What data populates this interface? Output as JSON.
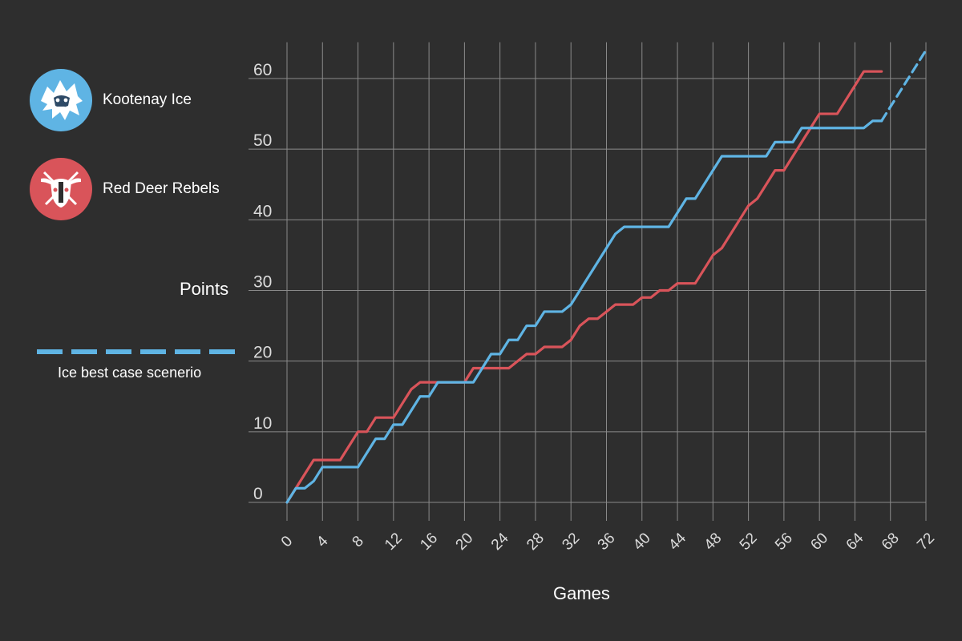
{
  "legend": {
    "kootenay": {
      "label": "Kootenay Ice",
      "icon": "yeti-logo-icon",
      "color": "#5fb4e4"
    },
    "reddeer": {
      "label": "Red Deer Rebels",
      "icon": "bull-skull-logo-icon",
      "color": "#d9545a"
    },
    "best_case": {
      "label": "Ice best case scenerio",
      "color": "#5fb4e4",
      "style": "dashed"
    }
  },
  "chart_data": {
    "type": "line",
    "xlabel": "Games",
    "ylabel": "Points",
    "xlim": [
      0,
      72
    ],
    "ylim": [
      0,
      64
    ],
    "xticks": [
      0,
      4,
      8,
      12,
      16,
      20,
      24,
      28,
      32,
      36,
      40,
      44,
      48,
      52,
      56,
      60,
      64,
      68,
      72
    ],
    "yticks": [
      0,
      10,
      20,
      30,
      40,
      50,
      60
    ],
    "grid": true,
    "colors": {
      "kootenay": "#5fb4e4",
      "reddeer": "#d9545a",
      "grid": "#8a8a8a",
      "background": "#2e2e2e"
    },
    "series": [
      {
        "name": "Kootenay Ice",
        "x": [
          0,
          1,
          2,
          3,
          4,
          5,
          6,
          7,
          8,
          9,
          10,
          11,
          12,
          13,
          14,
          15,
          16,
          17,
          18,
          19,
          20,
          21,
          22,
          23,
          24,
          25,
          26,
          27,
          28,
          29,
          30,
          31,
          32,
          33,
          34,
          35,
          36,
          37,
          38,
          39,
          40,
          41,
          42,
          43,
          44,
          45,
          46,
          47,
          48,
          49,
          50,
          51,
          52,
          53,
          54,
          55,
          56,
          57,
          58,
          59,
          60,
          61,
          62,
          63,
          64,
          65,
          66,
          67
        ],
        "values": [
          0,
          2,
          2,
          3,
          5,
          5,
          5,
          5,
          5,
          7,
          9,
          9,
          11,
          11,
          13,
          15,
          15,
          17,
          17,
          17,
          17,
          17,
          19,
          21,
          21,
          23,
          23,
          25,
          25,
          27,
          27,
          27,
          28,
          30,
          32,
          34,
          36,
          38,
          39,
          39,
          39,
          39,
          39,
          39,
          41,
          43,
          43,
          45,
          47,
          49,
          49,
          49,
          49,
          49,
          49,
          51,
          51,
          51,
          53,
          53,
          53,
          53,
          53,
          53,
          53,
          53,
          54,
          54
        ]
      },
      {
        "name": "Red Deer Rebels",
        "x": [
          0,
          1,
          2,
          3,
          4,
          5,
          6,
          7,
          8,
          9,
          10,
          11,
          12,
          13,
          14,
          15,
          16,
          17,
          18,
          19,
          20,
          21,
          22,
          23,
          24,
          25,
          26,
          27,
          28,
          29,
          30,
          31,
          32,
          33,
          34,
          35,
          36,
          37,
          38,
          39,
          40,
          41,
          42,
          43,
          44,
          45,
          46,
          47,
          48,
          49,
          50,
          51,
          52,
          53,
          54,
          55,
          56,
          57,
          58,
          59,
          60,
          61,
          62,
          63,
          64,
          65,
          66,
          67
        ],
        "values": [
          0,
          2,
          4,
          6,
          6,
          6,
          6,
          8,
          10,
          10,
          12,
          12,
          12,
          14,
          16,
          17,
          17,
          17,
          17,
          17,
          17,
          19,
          19,
          19,
          19,
          19,
          20,
          21,
          21,
          22,
          22,
          22,
          23,
          25,
          26,
          26,
          27,
          28,
          28,
          28,
          29,
          29,
          30,
          30,
          31,
          31,
          31,
          33,
          35,
          36,
          38,
          40,
          42,
          43,
          45,
          47,
          47,
          49,
          51,
          53,
          55,
          55,
          55,
          57,
          59,
          61,
          61,
          61
        ]
      },
      {
        "name": "Ice best case scenerio",
        "style": "dashed",
        "x": [
          67,
          68,
          69,
          70,
          71,
          72
        ],
        "values": [
          54,
          56,
          58,
          60,
          62,
          64
        ]
      }
    ]
  }
}
